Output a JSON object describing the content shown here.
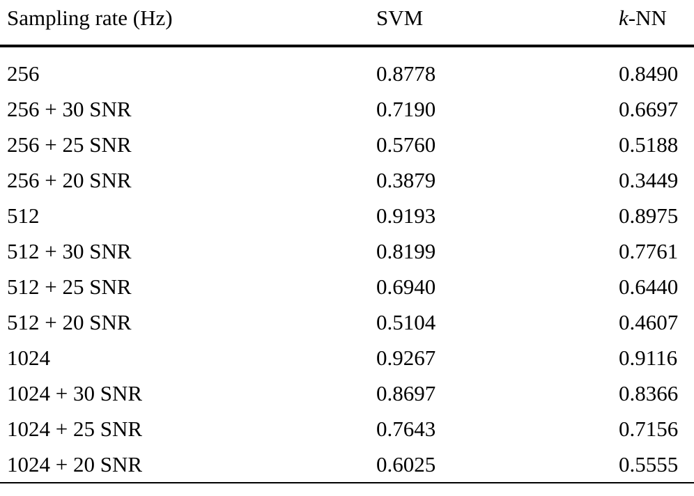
{
  "table": {
    "columns": {
      "sampling_rate": "Sampling rate (Hz)",
      "svm": "SVM",
      "knn_italic": "k",
      "knn_rest": "-NN"
    },
    "rows": [
      {
        "label": "256",
        "svm": "0.8778",
        "knn": "0.8490"
      },
      {
        "label": "256 + 30 SNR",
        "svm": "0.7190",
        "knn": "0.6697"
      },
      {
        "label": "256 + 25 SNR",
        "svm": "0.5760",
        "knn": "0.5188"
      },
      {
        "label": "256 + 20 SNR",
        "svm": "0.3879",
        "knn": "0.3449"
      },
      {
        "label": "512",
        "svm": "0.9193",
        "knn": "0.8975"
      },
      {
        "label": "512 + 30 SNR",
        "svm": "0.8199",
        "knn": "0.7761"
      },
      {
        "label": "512 + 25 SNR",
        "svm": "0.6940",
        "knn": "0.6440"
      },
      {
        "label": "512 + 20 SNR",
        "svm": "0.5104",
        "knn": "0.4607"
      },
      {
        "label": "1024",
        "svm": "0.9267",
        "knn": "0.9116"
      },
      {
        "label": "1024 + 30 SNR",
        "svm": "0.8697",
        "knn": "0.8366"
      },
      {
        "label": "1024 + 25 SNR",
        "svm": "0.7643",
        "knn": "0.7156"
      },
      {
        "label": "1024 + 20 SNR",
        "svm": "0.6025",
        "knn": "0.5555"
      }
    ]
  },
  "chart_data": {
    "type": "table",
    "title": "",
    "columns": [
      "Sampling rate (Hz)",
      "SVM",
      "k-NN"
    ],
    "categories": [
      "256",
      "256 + 30 SNR",
      "256 + 25 SNR",
      "256 + 20 SNR",
      "512",
      "512 + 30 SNR",
      "512 + 25 SNR",
      "512 + 20 SNR",
      "1024",
      "1024 + 30 SNR",
      "1024 + 25 SNR",
      "1024 + 20 SNR"
    ],
    "series": [
      {
        "name": "SVM",
        "values": [
          0.8778,
          0.719,
          0.576,
          0.3879,
          0.9193,
          0.8199,
          0.694,
          0.5104,
          0.9267,
          0.8697,
          0.7643,
          0.6025
        ]
      },
      {
        "name": "k-NN",
        "values": [
          0.849,
          0.6697,
          0.5188,
          0.3449,
          0.8975,
          0.7761,
          0.644,
          0.4607,
          0.9116,
          0.8366,
          0.7156,
          0.5555
        ]
      }
    ]
  },
  "colors": {
    "text": "#000000",
    "rule": "#000000",
    "background": "#ffffff"
  }
}
